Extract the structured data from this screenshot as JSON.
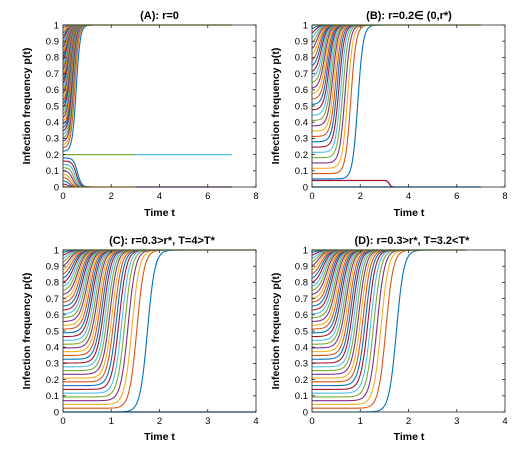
{
  "figure": {
    "shared": {
      "xlabel": "Time t",
      "ylabel": "Infection frequency p(t)",
      "yticks": [
        "0",
        "0.1",
        "0.2",
        "0.3",
        "0.4",
        "0.5",
        "0.6",
        "0.7",
        "0.8",
        "0.9",
        "1"
      ]
    },
    "palette": [
      "#0072bd",
      "#d95319",
      "#edb120",
      "#7e2f8e",
      "#77ac30",
      "#4dbeee",
      "#a2142f"
    ]
  },
  "chart_data": [
    {
      "type": "line",
      "title": "(A): r=0",
      "xlabel": "Time t",
      "ylabel": "Infection frequency p(t)",
      "xlim": [
        0,
        8
      ],
      "ylim": [
        0,
        1
      ],
      "xticks": [
        "0",
        "2",
        "4",
        "6",
        "8"
      ],
      "grid": false,
      "legend": "none",
      "family": {
        "rising_curves": {
          "count": 40,
          "initial_values_range": [
            0.22,
            1.0
          ],
          "rise_midpoint_range": [
            0.1,
            0.55
          ],
          "rise_steepness": 12,
          "end_time": 3
        },
        "decaying_curves": {
          "count": 10,
          "initial_values_range": [
            0.0,
            0.18
          ],
          "decay_time_range": [
            0.15,
            0.6
          ],
          "end_time": 3
        },
        "long_series": [
          {
            "color": "#77ac30",
            "value": 1.0,
            "x_range": [
              0,
              7
            ]
          },
          {
            "color": "#77ac30",
            "value": 0.2,
            "x_range": [
              0,
              3
            ]
          },
          {
            "color": "#4dbeee",
            "value": 0.2,
            "x_range": [
              3,
              7
            ]
          },
          {
            "color": "#edb120",
            "value": 0.0,
            "x_range": [
              0,
              3
            ]
          },
          {
            "color": "#7e2f8e",
            "value": 0.0,
            "x_range": [
              3,
              7
            ]
          }
        ]
      }
    },
    {
      "type": "line",
      "title": "(B): r=0.2∈ (0,r*)",
      "xlabel": "Time t",
      "ylabel": "Infection frequency p(t)",
      "xlim": [
        0,
        8
      ],
      "ylim": [
        0,
        1
      ],
      "xticks": [
        "0",
        "2",
        "4",
        "6",
        "8"
      ],
      "grid": false,
      "legend": "none",
      "family": {
        "rising_curves": {
          "count": 30,
          "initial_values_range": [
            0.05,
            1.0
          ],
          "rise_midpoint_range": [
            0.05,
            1.9
          ],
          "rise_steepness": 9,
          "end_time": 3
        },
        "long_series": [
          {
            "color": "#77ac30",
            "value": 1.0,
            "x_range": [
              0,
              7
            ]
          },
          {
            "color": "#a2142f",
            "value": 0.04,
            "x_range": [
              0,
              3
            ],
            "note_drop_to": 0,
            "drop_time": 3.2
          },
          {
            "color": "#0072bd",
            "value": 0.0,
            "x_range": [
              0,
              7
            ]
          }
        ]
      }
    },
    {
      "type": "line",
      "title": "(C): r=0.3>r*, T=4>T*",
      "xlabel": "Time t",
      "ylabel": "Infection frequency p(t)",
      "xlim": [
        0,
        4
      ],
      "ylim": [
        0,
        1
      ],
      "xticks": [
        "0",
        "1",
        "2",
        "3",
        "4"
      ],
      "grid": false,
      "legend": "none",
      "family": {
        "rising_curves": {
          "count": 44,
          "initial_values_range": [
            0.0,
            1.0
          ],
          "rise_midpoint_range": [
            0.02,
            1.75
          ],
          "rise_steepness": 13,
          "end_time": 4
        },
        "long_series": [
          {
            "color": "#77ac30",
            "value": 1.0,
            "x_range": [
              0,
              4
            ]
          },
          {
            "color": "#0072bd",
            "value": 0.0,
            "x_range": [
              0,
              4
            ]
          }
        ]
      }
    },
    {
      "type": "line",
      "title": "(D): r=0.3>r*, T=3.2<T*",
      "xlabel": "Time t",
      "ylabel": "Infection frequency p(t)",
      "xlim": [
        0,
        4
      ],
      "ylim": [
        0,
        1
      ],
      "xticks": [
        "0",
        "1",
        "2",
        "3",
        "4"
      ],
      "grid": false,
      "legend": "none",
      "family": {
        "rising_curves": {
          "count": 44,
          "initial_values_range": [
            0.0,
            1.0
          ],
          "rise_midpoint_range": [
            0.02,
            1.75
          ],
          "rise_steepness": 13,
          "end_time": 3.2
        },
        "long_series": [
          {
            "color": "#77ac30",
            "value": 1.0,
            "x_range": [
              0,
              3.2
            ]
          }
        ]
      }
    }
  ]
}
